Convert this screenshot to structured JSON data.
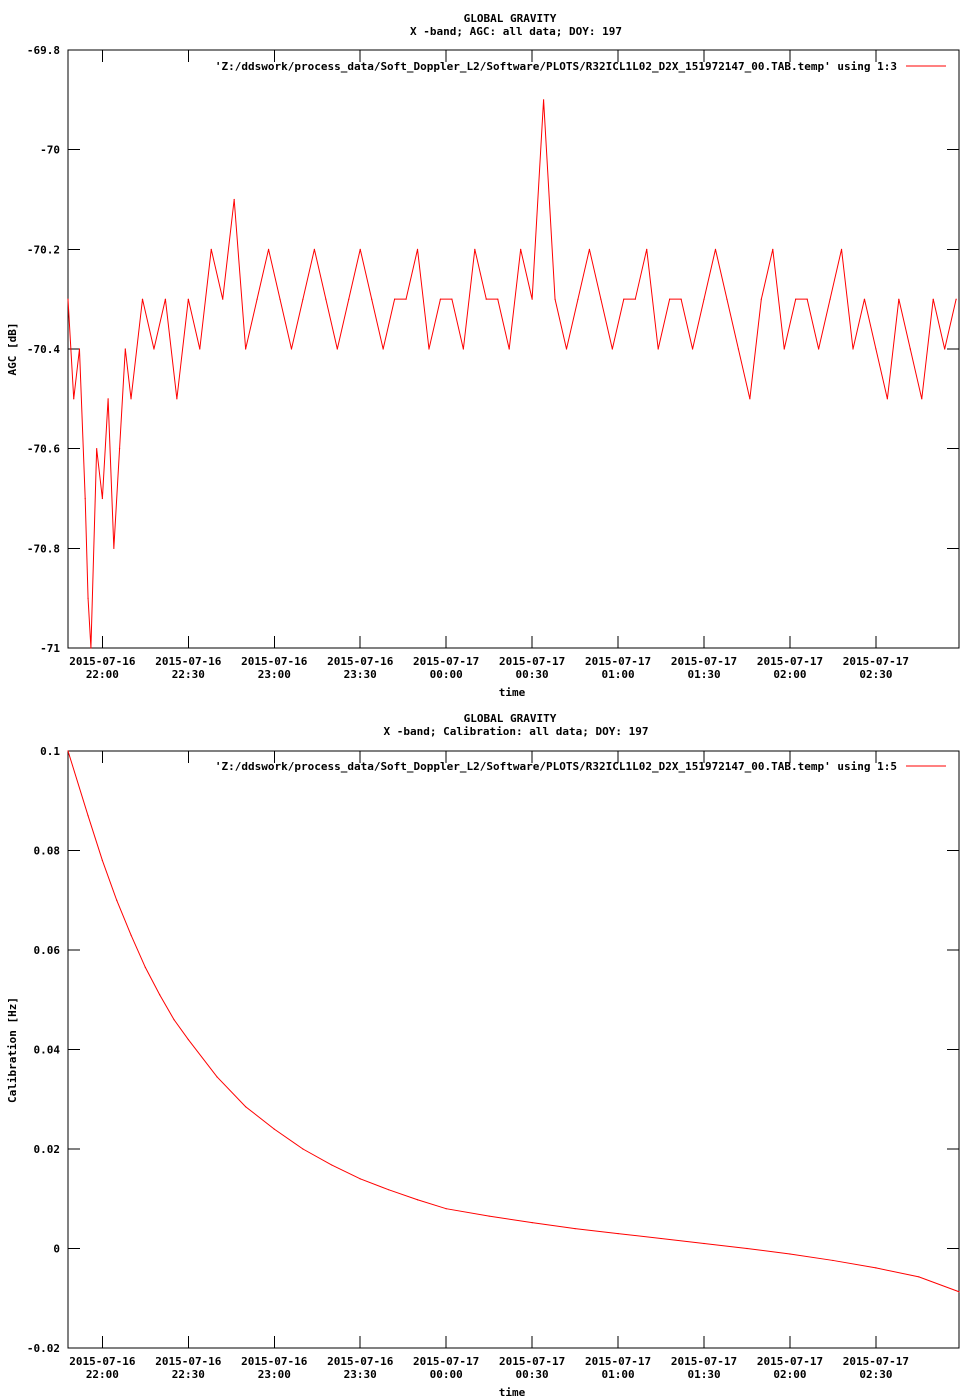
{
  "colors": {
    "series": "#ff0000",
    "axis": "#000000",
    "background": "#ffffff"
  },
  "chart_data": [
    {
      "type": "line",
      "title": "GLOBAL GRAVITY",
      "subtitle": "X -band; AGC: all data; DOY: 197",
      "xlabel": "time",
      "ylabel": "AGC [dB]",
      "ylim": [
        -71,
        -69.8
      ],
      "yticks": [
        -69.8,
        -70,
        -70.2,
        -70.4,
        -70.6,
        -70.8,
        -71
      ],
      "yticklabels": [
        "-69.8",
        "-70",
        "-70.2",
        "-70.4",
        "-70.6",
        "-70.8",
        "-71"
      ],
      "xlim": [
        "2015-07-16 21:48",
        "2015-07-17 02:59"
      ],
      "xticks": [
        "2015-07-16 22:00",
        "2015-07-16 22:30",
        "2015-07-16 23:00",
        "2015-07-16 23:30",
        "2015-07-17 00:00",
        "2015-07-17 00:30",
        "2015-07-17 01:00",
        "2015-07-17 01:30",
        "2015-07-17 02:00",
        "2015-07-17 02:30"
      ],
      "xticklabels": [
        [
          "2015-07-16",
          "22:00"
        ],
        [
          "2015-07-16",
          "22:30"
        ],
        [
          "2015-07-16",
          "23:00"
        ],
        [
          "2015-07-16",
          "23:30"
        ],
        [
          "2015-07-17",
          "00:00"
        ],
        [
          "2015-07-17",
          "00:30"
        ],
        [
          "2015-07-17",
          "01:00"
        ],
        [
          "2015-07-17",
          "01:30"
        ],
        [
          "2015-07-17",
          "02:00"
        ],
        [
          "2015-07-17",
          "02:30"
        ]
      ],
      "legend": "top-right",
      "grid": false,
      "series": [
        {
          "name": "'Z:/ddswork/process_data/Soft_Doppler_L2/Software/PLOTS/R32ICL1L02_D2X_151972147_00.TAB.temp' using 1:3",
          "x": [
            "2015-07-16 21:48",
            "2015-07-16 21:50",
            "2015-07-16 21:52",
            "2015-07-16 21:54",
            "2015-07-16 21:55",
            "2015-07-16 21:56",
            "2015-07-16 21:58",
            "2015-07-16 22:00",
            "2015-07-16 22:02",
            "2015-07-16 22:04",
            "2015-07-16 22:06",
            "2015-07-16 22:08",
            "2015-07-16 22:10",
            "2015-07-16 22:14",
            "2015-07-16 22:18",
            "2015-07-16 22:22",
            "2015-07-16 22:26",
            "2015-07-16 22:30",
            "2015-07-16 22:34",
            "2015-07-16 22:38",
            "2015-07-16 22:42",
            "2015-07-16 22:46",
            "2015-07-16 22:50",
            "2015-07-16 22:54",
            "2015-07-16 22:58",
            "2015-07-16 23:02",
            "2015-07-16 23:06",
            "2015-07-16 23:10",
            "2015-07-16 23:14",
            "2015-07-16 23:18",
            "2015-07-16 23:22",
            "2015-07-16 23:26",
            "2015-07-16 23:30",
            "2015-07-16 23:34",
            "2015-07-16 23:38",
            "2015-07-16 23:42",
            "2015-07-16 23:46",
            "2015-07-16 23:50",
            "2015-07-16 23:54",
            "2015-07-16 23:58",
            "2015-07-17 00:02",
            "2015-07-17 00:06",
            "2015-07-17 00:10",
            "2015-07-17 00:14",
            "2015-07-17 00:18",
            "2015-07-17 00:22",
            "2015-07-17 00:26",
            "2015-07-17 00:30",
            "2015-07-17 00:34",
            "2015-07-17 00:38",
            "2015-07-17 00:42",
            "2015-07-17 00:46",
            "2015-07-17 00:50",
            "2015-07-17 00:54",
            "2015-07-17 00:58",
            "2015-07-17 01:02",
            "2015-07-17 01:06",
            "2015-07-17 01:10",
            "2015-07-17 01:14",
            "2015-07-17 01:18",
            "2015-07-17 01:22",
            "2015-07-17 01:26",
            "2015-07-17 01:30",
            "2015-07-17 01:34",
            "2015-07-17 01:38",
            "2015-07-17 01:42",
            "2015-07-17 01:46",
            "2015-07-17 01:50",
            "2015-07-17 01:54",
            "2015-07-17 01:58",
            "2015-07-17 02:02",
            "2015-07-17 02:06",
            "2015-07-17 02:10",
            "2015-07-17 02:14",
            "2015-07-17 02:18",
            "2015-07-17 02:22",
            "2015-07-17 02:26",
            "2015-07-17 02:30",
            "2015-07-17 02:34",
            "2015-07-17 02:38",
            "2015-07-17 02:42",
            "2015-07-17 02:46",
            "2015-07-17 02:50",
            "2015-07-17 02:54",
            "2015-07-17 02:58"
          ],
          "y": [
            -70.3,
            -70.5,
            -70.4,
            -70.7,
            -70.9,
            -71,
            -70.6,
            -70.7,
            -70.5,
            -70.8,
            -70.6,
            -70.4,
            -70.5,
            -70.3,
            -70.4,
            -70.3,
            -70.5,
            -70.3,
            -70.4,
            -70.2,
            -70.3,
            -70.1,
            -70.4,
            -70.3,
            -70.2,
            -70.3,
            -70.4,
            -70.3,
            -70.2,
            -70.3,
            -70.4,
            -70.3,
            -70.2,
            -70.3,
            -70.4,
            -70.3,
            -70.3,
            -70.2,
            -70.4,
            -70.3,
            -70.3,
            -70.4,
            -70.2,
            -70.3,
            -70.3,
            -70.4,
            -70.2,
            -70.3,
            -69.9,
            -70.3,
            -70.4,
            -70.3,
            -70.2,
            -70.3,
            -70.4,
            -70.3,
            -70.3,
            -70.2,
            -70.4,
            -70.3,
            -70.3,
            -70.4,
            -70.3,
            -70.2,
            -70.3,
            -70.4,
            -70.5,
            -70.3,
            -70.2,
            -70.4,
            -70.3,
            -70.3,
            -70.4,
            -70.3,
            -70.2,
            -70.4,
            -70.3,
            -70.4,
            -70.5,
            -70.3,
            -70.4,
            -70.5,
            -70.3,
            -70.4,
            -70.3
          ]
        }
      ]
    },
    {
      "type": "line",
      "title": "GLOBAL GRAVITY",
      "subtitle": "X -band; Calibration: all data; DOY: 197",
      "xlabel": "time",
      "ylabel": "Calibration [Hz]",
      "ylim": [
        -0.02,
        0.1
      ],
      "yticks": [
        0.1,
        0.08,
        0.06,
        0.04,
        0.02,
        0,
        -0.02
      ],
      "yticklabels": [
        "0.1",
        "0.08",
        "0.06",
        "0.04",
        "0.02",
        "0",
        "-0.02"
      ],
      "xlim": [
        "2015-07-16 21:48",
        "2015-07-17 02:59"
      ],
      "xticks": [
        "2015-07-16 22:00",
        "2015-07-16 22:30",
        "2015-07-16 23:00",
        "2015-07-16 23:30",
        "2015-07-17 00:00",
        "2015-07-17 00:30",
        "2015-07-17 01:00",
        "2015-07-17 01:30",
        "2015-07-17 02:00",
        "2015-07-17 02:30"
      ],
      "xticklabels": [
        [
          "2015-07-16",
          "22:00"
        ],
        [
          "2015-07-16",
          "22:30"
        ],
        [
          "2015-07-16",
          "23:00"
        ],
        [
          "2015-07-16",
          "23:30"
        ],
        [
          "2015-07-17",
          "00:00"
        ],
        [
          "2015-07-17",
          "00:30"
        ],
        [
          "2015-07-17",
          "01:00"
        ],
        [
          "2015-07-17",
          "01:30"
        ],
        [
          "2015-07-17",
          "02:00"
        ],
        [
          "2015-07-17",
          "02:30"
        ]
      ],
      "legend": "top-right",
      "grid": false,
      "series": [
        {
          "name": "'Z:/ddswork/process_data/Soft_Doppler_L2/Software/PLOTS/R32ICL1L02_D2X_151972147_00.TAB.temp' using 1:5",
          "x": [
            "2015-07-16 21:48",
            "2015-07-16 21:55",
            "2015-07-16 22:00",
            "2015-07-16 22:05",
            "2015-07-16 22:10",
            "2015-07-16 22:15",
            "2015-07-16 22:20",
            "2015-07-16 22:25",
            "2015-07-16 22:30",
            "2015-07-16 22:40",
            "2015-07-16 22:50",
            "2015-07-16 23:00",
            "2015-07-16 23:10",
            "2015-07-16 23:20",
            "2015-07-16 23:30",
            "2015-07-16 23:40",
            "2015-07-16 23:50",
            "2015-07-17 00:00",
            "2015-07-17 00:15",
            "2015-07-17 00:30",
            "2015-07-17 00:45",
            "2015-07-17 01:00",
            "2015-07-17 01:15",
            "2015-07-17 01:30",
            "2015-07-17 01:45",
            "2015-07-17 02:00",
            "2015-07-17 02:15",
            "2015-07-17 02:30",
            "2015-07-17 02:45",
            "2015-07-17 02:59"
          ],
          "y": [
            0.1,
            0.087,
            0.078,
            0.07,
            0.063,
            0.0565,
            0.051,
            0.046,
            0.042,
            0.0345,
            0.0285,
            0.024,
            0.02,
            0.0168,
            0.014,
            0.0118,
            0.0098,
            0.008,
            0.0065,
            0.0052,
            0.004,
            0.003,
            0.002,
            0.001,
            0.0,
            -0.0011,
            -0.0024,
            -0.0039,
            -0.0057,
            -0.0087
          ]
        }
      ]
    }
  ]
}
